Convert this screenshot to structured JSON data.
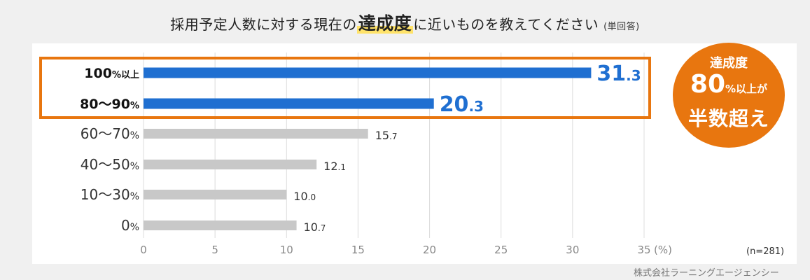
{
  "title": {
    "pre": "採用予定人数に対する現在の",
    "highlight": "達成度",
    "post": "に近いものを教えてください",
    "note": "(単回答)"
  },
  "badge": {
    "line1": "達成度",
    "line2_big": "80",
    "line2_small": "%以上が",
    "line3": "半数超え"
  },
  "n_note": "(n=281)",
  "credit": "株式会社ラーニングエージェンシー",
  "colors": {
    "highlight_bar": "#1f6fd1",
    "normal_bar": "#c8c8c8",
    "frame": "#e8760f"
  },
  "chart_data": {
    "type": "bar",
    "orientation": "horizontal",
    "categories": [
      "100%以上",
      "80〜90%",
      "60〜70%",
      "40〜50%",
      "10〜30%",
      "0%"
    ],
    "values": [
      31.3,
      20.3,
      15.7,
      12.1,
      10.0,
      10.7
    ],
    "value_labels": [
      {
        "int": "31",
        "dec": ".3"
      },
      {
        "int": "20",
        "dec": ".3"
      },
      {
        "int": "15",
        "dec": ".7"
      },
      {
        "int": "12",
        "dec": ".1"
      },
      {
        "int": "10",
        "dec": ".0"
      },
      {
        "int": "10",
        "dec": ".7"
      }
    ],
    "highlighted": [
      true,
      true,
      false,
      false,
      false,
      false
    ],
    "xlim": [
      0,
      35
    ],
    "xticks": [
      "0",
      "5",
      "10",
      "15",
      "20",
      "25",
      "30",
      "35"
    ],
    "xunit": "(%)",
    "grid": true,
    "title": "",
    "xlabel": "",
    "ylabel": ""
  }
}
